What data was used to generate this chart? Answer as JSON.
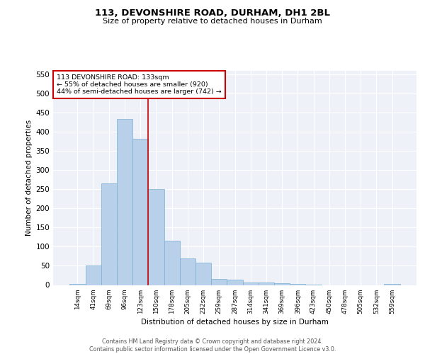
{
  "title1": "113, DEVONSHIRE ROAD, DURHAM, DH1 2BL",
  "title2": "Size of property relative to detached houses in Durham",
  "xlabel": "Distribution of detached houses by size in Durham",
  "ylabel": "Number of detached properties",
  "categories": [
    "14sqm",
    "41sqm",
    "69sqm",
    "96sqm",
    "123sqm",
    "150sqm",
    "178sqm",
    "205sqm",
    "232sqm",
    "259sqm",
    "287sqm",
    "314sqm",
    "341sqm",
    "369sqm",
    "396sqm",
    "423sqm",
    "450sqm",
    "478sqm",
    "505sqm",
    "532sqm",
    "559sqm"
  ],
  "values": [
    3,
    51,
    265,
    435,
    383,
    250,
    115,
    70,
    58,
    15,
    14,
    6,
    6,
    5,
    3,
    1,
    0,
    0,
    0,
    0,
    3
  ],
  "bar_color": "#b8d0ea",
  "bar_edge_color": "#7aafd4",
  "background_color": "#eef2f8",
  "grid_color": "#ffffff",
  "vline_x": 4.5,
  "vline_color": "#cc0000",
  "annotation_text": "113 DEVONSHIRE ROAD: 133sqm\n← 55% of detached houses are smaller (920)\n44% of semi-detached houses are larger (742) →",
  "annotation_box_color": "#ffffff",
  "annotation_box_edge": "#cc0000",
  "ylim": [
    0,
    560
  ],
  "yticks": [
    0,
    50,
    100,
    150,
    200,
    250,
    300,
    350,
    400,
    450,
    500,
    550
  ],
  "footer": "Contains HM Land Registry data © Crown copyright and database right 2024.\nContains public sector information licensed under the Open Government Licence v3.0."
}
